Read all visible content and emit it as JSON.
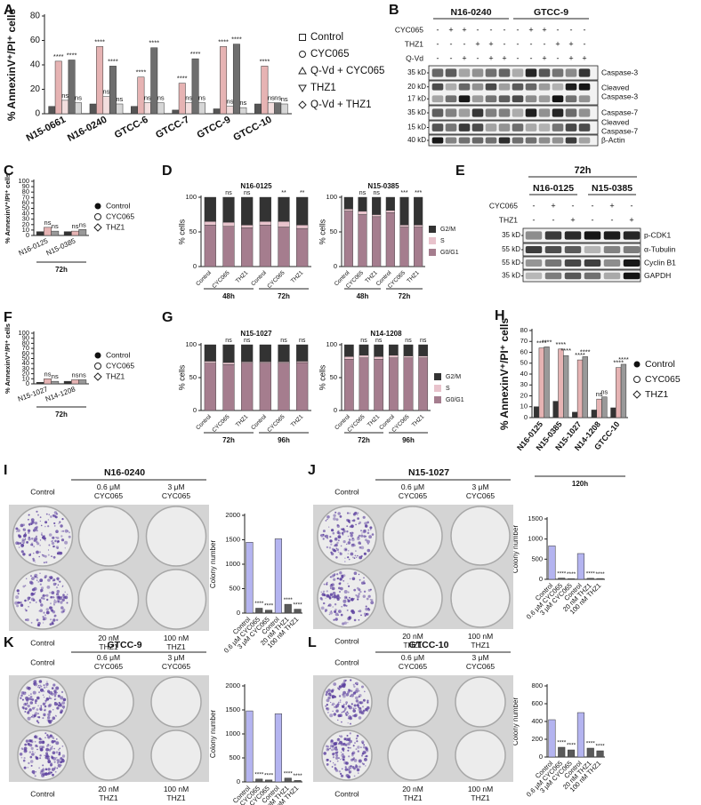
{
  "chart_data": [
    {
      "type": "bar",
      "panel": "A",
      "ylabel": "% AnnexinV⁺/PI⁺ cells",
      "categories": [
        "N15-0661",
        "N16-0240",
        "GTCC-6",
        "GTCC-7",
        "GTCC-9",
        "GTCC-10"
      ],
      "series": [
        {
          "name": "Control",
          "color": "#555555",
          "marker": "square",
          "values": [
            6,
            8,
            6,
            3,
            4,
            8
          ]
        },
        {
          "name": "CYC065",
          "color": "#e6b3b3",
          "marker": "circle",
          "values": [
            43,
            55,
            30,
            25,
            55,
            39
          ],
          "annotations": [
            "****",
            "****",
            "****",
            "****",
            "****",
            "****"
          ]
        },
        {
          "name": "Q-Vd + CYC065",
          "color": "#f3dede",
          "marker": "triangle-up",
          "values": [
            11,
            14,
            9,
            9,
            6,
            9
          ],
          "annotations": [
            "ns",
            "ns",
            "ns",
            "ns",
            "ns",
            "ns"
          ]
        },
        {
          "name": "THZ1",
          "color": "#6e6e6e",
          "marker": "triangle-down",
          "values": [
            44,
            39,
            54,
            45,
            57,
            9
          ],
          "annotations": [
            "****",
            "****",
            "****",
            "****",
            "****",
            "ns"
          ]
        },
        {
          "name": "Q-Vd + THZ1",
          "color": "#d6d6d6",
          "marker": "diamond",
          "values": [
            9,
            8,
            9,
            9,
            5,
            8
          ],
          "annotations": [
            "ns",
            "ns",
            "ns",
            "ns",
            "ns",
            "ns"
          ]
        }
      ],
      "ylim": [
        0,
        80
      ],
      "yticks": [
        0,
        20,
        40,
        60,
        80
      ],
      "legend": "right"
    },
    {
      "type": "bar",
      "panel": "C",
      "ylabel": "% AnnexinV⁺/PI⁺ cells",
      "categories": [
        "N16-0125",
        "N15-0385"
      ],
      "group_labels": [
        "72h"
      ],
      "series": [
        {
          "name": "Control",
          "color": "#333333",
          "marker": "circle-filled",
          "values": [
            7,
            7
          ]
        },
        {
          "name": "CYC065",
          "color": "#e6b3b3",
          "marker": "circle",
          "values": [
            15,
            8
          ],
          "annotations": [
            "ns",
            "ns"
          ]
        },
        {
          "name": "THZ1",
          "color": "#999999",
          "marker": "diamond",
          "values": [
            8,
            11
          ],
          "annotations": [
            "ns",
            "ns"
          ]
        }
      ],
      "ylim": [
        0,
        100
      ],
      "yticks": [
        0,
        10,
        20,
        30,
        40,
        50,
        60,
        70,
        80,
        90,
        100
      ],
      "legend": "right"
    },
    {
      "type": "stacked_bar",
      "panel": "D",
      "title": "N16-0125",
      "ylabel": "% cells",
      "categories": [
        "Control",
        "CYC065",
        "THZ1",
        "Control",
        "CYC065",
        "THZ1"
      ],
      "group_labels": [
        "48h",
        "72h"
      ],
      "series": [
        {
          "name": "G0/G1",
          "color": "#a57d8e",
          "values": [
            60,
            58,
            56,
            60,
            57,
            55
          ]
        },
        {
          "name": "S",
          "color": "#e8c3cc",
          "values": [
            5,
            6,
            4,
            5,
            8,
            5
          ]
        },
        {
          "name": "G2/M",
          "color": "#333333",
          "values": [
            35,
            36,
            40,
            35,
            35,
            40
          ]
        }
      ],
      "annotations": [
        null,
        "ns",
        "ns",
        null,
        "**",
        "**"
      ],
      "ylim": [
        0,
        100
      ],
      "yticks": [
        0,
        50,
        100
      ]
    },
    {
      "type": "stacked_bar",
      "title": "N15-0385",
      "ylabel": "% cells",
      "categories": [
        "Control",
        "CYC065",
        "THZ1",
        "Control",
        "CYC065",
        "THZ1"
      ],
      "group_labels": [
        "48h",
        "72h"
      ],
      "series": [
        {
          "name": "G0/G1",
          "color": "#a57d8e",
          "values": [
            80,
            75,
            72,
            78,
            57,
            57
          ]
        },
        {
          "name": "S",
          "color": "#e8c3cc",
          "values": [
            3,
            5,
            3,
            3,
            3,
            3
          ]
        },
        {
          "name": "G2/M",
          "color": "#333333",
          "values": [
            17,
            20,
            25,
            19,
            40,
            40
          ]
        }
      ],
      "annotations": [
        null,
        "ns",
        "ns",
        null,
        "***",
        "***"
      ],
      "ylim": [
        0,
        100
      ],
      "yticks": [
        0,
        50,
        100
      ],
      "legend": "right"
    },
    {
      "type": "bar",
      "panel": "F",
      "ylabel": "% AnnexinV⁺/PI⁺ cells",
      "categories": [
        "N15-1027",
        "N14-1208"
      ],
      "group_labels": [
        "72h"
      ],
      "series": [
        {
          "name": "Control",
          "color": "#333333",
          "marker": "circle-filled",
          "values": [
            3,
            5
          ]
        },
        {
          "name": "CYC065",
          "color": "#e6b3b3",
          "marker": "circle",
          "values": [
            10,
            8
          ],
          "annotations": [
            "ns",
            "ns"
          ]
        },
        {
          "name": "THZ1",
          "color": "#999999",
          "marker": "diamond",
          "values": [
            5,
            8
          ],
          "annotations": [
            "ns",
            "ns"
          ]
        }
      ],
      "ylim": [
        0,
        100
      ],
      "yticks": [
        0,
        10,
        20,
        30,
        40,
        50,
        60,
        70,
        80,
        90,
        100
      ],
      "legend": "right"
    },
    {
      "type": "stacked_bar",
      "panel": "G",
      "title": "N15-1027",
      "ylabel": "% cells",
      "categories": [
        "Control",
        "CYC065",
        "THZ1",
        "Control",
        "CYC065",
        "THZ1"
      ],
      "group_labels": [
        "72h",
        "96h"
      ],
      "series": [
        {
          "name": "G0/G1",
          "color": "#a57d8e",
          "values": [
            72,
            70,
            72,
            72,
            72,
            73
          ]
        },
        {
          "name": "S",
          "color": "#e8c3cc",
          "values": [
            3,
            3,
            2,
            2,
            2,
            2
          ]
        },
        {
          "name": "G2/M",
          "color": "#333333",
          "values": [
            25,
            27,
            26,
            26,
            26,
            25
          ]
        }
      ],
      "annotations": [
        null,
        "ns",
        "ns",
        null,
        "ns",
        "ns"
      ],
      "ylim": [
        0,
        100
      ],
      "yticks": [
        0,
        50,
        100
      ]
    },
    {
      "type": "stacked_bar",
      "title": "N14-1208",
      "ylabel": "% cells",
      "categories": [
        "Control",
        "CYC065",
        "THZ1",
        "Control",
        "CYC065",
        "THZ1"
      ],
      "group_labels": [
        "72h",
        "96h"
      ],
      "series": [
        {
          "name": "G0/G1",
          "color": "#a57d8e",
          "values": [
            78,
            80,
            78,
            80,
            80,
            80
          ]
        },
        {
          "name": "S",
          "color": "#e8c3cc",
          "values": [
            4,
            4,
            4,
            4,
            3,
            3
          ]
        },
        {
          "name": "G2/M",
          "color": "#333333",
          "values": [
            18,
            16,
            18,
            16,
            17,
            17
          ]
        }
      ],
      "annotations": [
        null,
        "ns",
        "ns",
        null,
        "ns",
        "ns"
      ],
      "ylim": [
        0,
        100
      ],
      "yticks": [
        0,
        50,
        100
      ],
      "legend": "right"
    },
    {
      "type": "bar",
      "panel": "H",
      "ylabel": "% AnnexinV⁺/PI⁺ cells",
      "categories": [
        "N16-0125",
        "N15-0385",
        "N15-1027",
        "N14-1208",
        "GTCC-10"
      ],
      "group_labels": [
        "120h"
      ],
      "series": [
        {
          "name": "Control",
          "color": "#333333",
          "marker": "circle-filled",
          "values": [
            10,
            15,
            5,
            7,
            9
          ]
        },
        {
          "name": "CYC065",
          "color": "#e6b3b3",
          "marker": "circle",
          "values": [
            64,
            63,
            53,
            17,
            46
          ],
          "annotations": [
            "****",
            "****",
            "****",
            "ns",
            "****"
          ]
        },
        {
          "name": "THZ1",
          "color": "#999999",
          "marker": "diamond",
          "values": [
            65,
            57,
            56,
            19,
            49
          ],
          "annotations": [
            "****",
            "****",
            "****",
            "ns",
            "****"
          ]
        }
      ],
      "ylim": [
        0,
        80
      ],
      "yticks": [
        0,
        10,
        20,
        30,
        40,
        50,
        60,
        70,
        80
      ],
      "legend": "right"
    },
    {
      "type": "bar",
      "ylabel": "Colony number",
      "categories": [
        "Control",
        "0.6 μM CYC065",
        "3 μM CYC065",
        "Control",
        "20 nM THZ1",
        "100 nM THZ1"
      ],
      "values": [
        1450,
        100,
        60,
        1520,
        180,
        80
      ],
      "colors": [
        "#b4b4f0",
        "#5a5a5a",
        "#5a5a5a",
        "#b4b4f0",
        "#5a5a5a",
        "#5a5a5a"
      ],
      "annotations": [
        null,
        "****",
        "****",
        null,
        "****",
        "****"
      ],
      "ylim": [
        0,
        2000
      ],
      "yticks": [
        0,
        500,
        1000,
        1500,
        2000
      ]
    },
    {
      "type": "bar",
      "ylabel": "Colony number",
      "categories": [
        "Control",
        "0.6 μM CYC065",
        "3 μM CYC065",
        "Control",
        "20 nM THZ1",
        "100 nM THZ1"
      ],
      "values": [
        830,
        30,
        15,
        640,
        25,
        20
      ],
      "colors": [
        "#b4b4f0",
        "#5a5a5a",
        "#5a5a5a",
        "#b4b4f0",
        "#5a5a5a",
        "#5a5a5a"
      ],
      "annotations": [
        null,
        "****",
        "****",
        null,
        "****",
        "****"
      ],
      "ylim": [
        0,
        1500
      ],
      "yticks": [
        0,
        500,
        1000,
        1500
      ]
    },
    {
      "type": "bar",
      "ylabel": "Colony number",
      "categories": [
        "Control",
        "0.6 μM CYC065",
        "3 μM CYC065",
        "Control",
        "20 nM THZ1",
        "100 nM THZ1"
      ],
      "values": [
        1480,
        60,
        40,
        1420,
        80,
        30
      ],
      "colors": [
        "#b4b4f0",
        "#5a5a5a",
        "#5a5a5a",
        "#b4b4f0",
        "#5a5a5a",
        "#5a5a5a"
      ],
      "annotations": [
        null,
        "****",
        "****",
        null,
        "****",
        "****"
      ],
      "ylim": [
        0,
        2000
      ],
      "yticks": [
        0,
        500,
        1000,
        1500,
        2000
      ]
    },
    {
      "type": "bar",
      "ylabel": "Colony number",
      "categories": [
        "Control",
        "0.6 μM CYC065",
        "3 μM CYC065",
        "Control",
        "20 nM THZ1",
        "100 nM THZ1"
      ],
      "values": [
        420,
        110,
        80,
        500,
        100,
        70
      ],
      "colors": [
        "#b4b4f0",
        "#5a5a5a",
        "#5a5a5a",
        "#b4b4f0",
        "#5a5a5a",
        "#5a5a5a"
      ],
      "annotations": [
        null,
        "****",
        "****",
        null,
        "****",
        "****"
      ],
      "ylim": [
        0,
        800
      ],
      "yticks": [
        0,
        200,
        400,
        600,
        800
      ]
    }
  ],
  "blots": [
    {
      "panel": "B",
      "cell_lines": [
        "N16-0240",
        "GTCC-9"
      ],
      "treatments": [
        {
          "name": "CYC065",
          "signs": [
            "-",
            "+",
            "+",
            "-",
            "-",
            "-",
            "-",
            "+",
            "+",
            "-",
            "-",
            "-"
          ]
        },
        {
          "name": "THZ1",
          "signs": [
            "-",
            "-",
            "-",
            "+",
            "+",
            "-",
            "-",
            "-",
            "-",
            "+",
            "+",
            "-"
          ]
        },
        {
          "name": "Q-Vd",
          "signs": [
            "-",
            "-",
            "+",
            "-",
            "+",
            "+",
            "-",
            "-",
            "+",
            "-",
            "+",
            "+"
          ]
        }
      ],
      "rows": [
        {
          "kd": [
            "35 kD"
          ],
          "label": "Caspase-3"
        },
        {
          "kd": [
            "20 kD",
            "17 kD"
          ],
          "label": "Cleaved Caspase-3"
        },
        {
          "kd": [
            "35 kD"
          ],
          "label": "Caspase-7"
        },
        {
          "kd": [
            "15 kD"
          ],
          "label": "Cleaved Caspase-7"
        },
        {
          "kd": [
            "40 kD"
          ],
          "label": "β-Actin"
        }
      ]
    },
    {
      "panel": "E",
      "timepoint": "72h",
      "cell_lines": [
        "N16-0125",
        "N15-0385"
      ],
      "treatments": [
        {
          "name": "CYC065",
          "signs": [
            "-",
            "+",
            "-",
            "-",
            "+",
            "-"
          ]
        },
        {
          "name": "THZ1",
          "signs": [
            "-",
            "-",
            "+",
            "-",
            "-",
            "+"
          ]
        }
      ],
      "rows": [
        {
          "kd": [
            "35 kD"
          ],
          "label": "p-CDK1"
        },
        {
          "kd": [
            "55 kD"
          ],
          "label": "α-Tubulin"
        },
        {
          "kd": [
            "55 kD"
          ],
          "label": "Cyclin B1"
        },
        {
          "kd": [
            "35 kD"
          ],
          "label": "GAPDH"
        }
      ]
    }
  ],
  "plates": [
    {
      "panel": "I",
      "title": "N16-0240",
      "top": [
        "Control",
        "0.6 μM CYC065",
        "3 μM CYC065"
      ],
      "bottom": [
        "Control",
        "20 nM THZ1",
        "100 nM THZ1"
      ]
    },
    {
      "panel": "J",
      "title": "N15-1027",
      "top": [
        "Control",
        "0.6 μM CYC065",
        "3 μM CYC065"
      ],
      "bottom": [
        "Control",
        "20 nM THZ1",
        "100 nM THZ1"
      ]
    },
    {
      "panel": "K",
      "title": "GTCC-9",
      "top": [
        "Control",
        "0.6 μM CYC065",
        "3 μM CYC065"
      ],
      "bottom": [
        "Control",
        "20 nM THZ1",
        "100 nM THZ1"
      ]
    },
    {
      "panel": "L",
      "title": "GTCC-10",
      "top": [
        "Control",
        "0.6 μM CYC065",
        "3 μM CYC065"
      ],
      "bottom": [
        "Control",
        "20 nM THZ1",
        "100 nM THZ1"
      ]
    }
  ]
}
